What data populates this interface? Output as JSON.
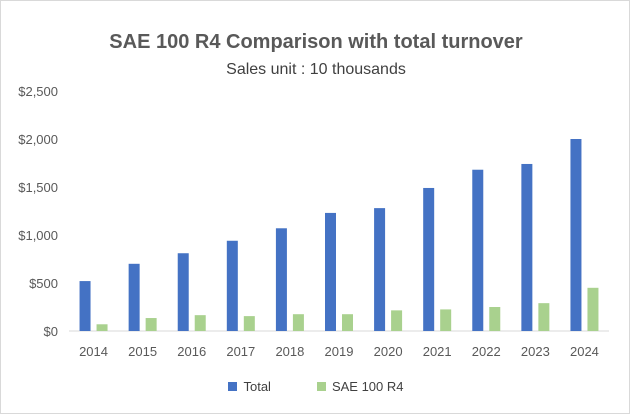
{
  "chart_data": {
    "type": "bar",
    "title": "SAE 100 R4 Comparison with total turnover",
    "subtitle": "Sales unit : 10 thousands",
    "categories": [
      "2014",
      "2015",
      "2016",
      "2017",
      "2018",
      "2019",
      "2020",
      "2021",
      "2022",
      "2023",
      "2024"
    ],
    "series": [
      {
        "name": "Total",
        "color": "#4472c4",
        "values": [
          520,
          700,
          810,
          940,
          1070,
          1230,
          1280,
          1490,
          1680,
          1740,
          2000
        ]
      },
      {
        "name": "SAE 100 R4",
        "color": "#a9d18e",
        "values": [
          70,
          135,
          165,
          155,
          175,
          175,
          215,
          225,
          250,
          290,
          450
        ]
      }
    ],
    "ylim": [
      0,
      2500
    ],
    "yticks": [
      0,
      500,
      1000,
      1500,
      2000,
      2500
    ],
    "ytick_labels": [
      "$0",
      "$500",
      "$1,000",
      "$1,500",
      "$2,000",
      "$2,500"
    ],
    "grid": false,
    "legend_position": "bottom"
  }
}
